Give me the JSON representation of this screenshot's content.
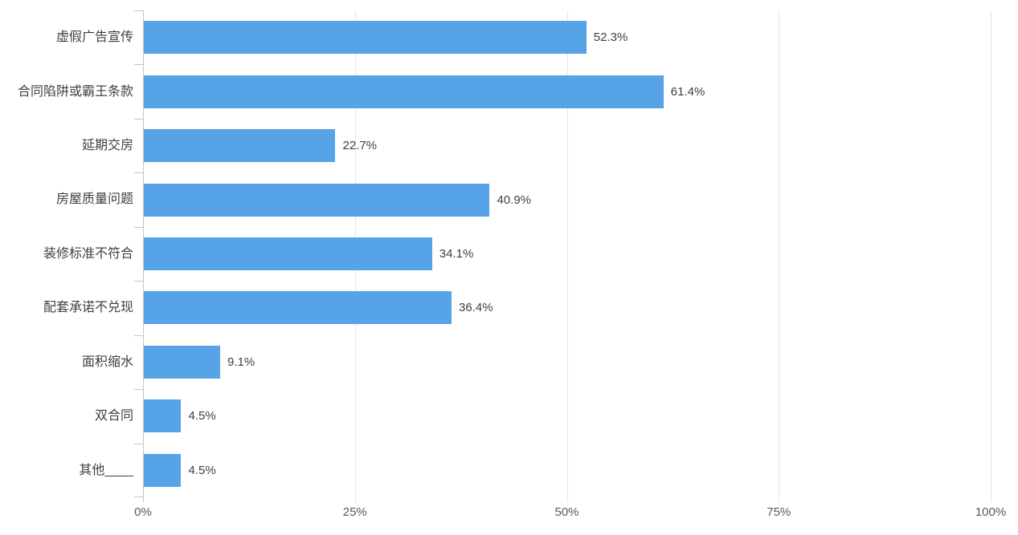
{
  "chart_data": {
    "type": "bar",
    "orientation": "horizontal",
    "title": "",
    "categories": [
      "虚假广告宣传",
      "合同陷阱或霸王条款",
      "延期交房",
      "房屋质量问题",
      "装修标准不符合",
      "配套承诺不兑现",
      "面积缩水",
      "双合同",
      "其他____"
    ],
    "values": [
      52.3,
      61.4,
      22.7,
      40.9,
      34.1,
      36.4,
      9.1,
      4.5,
      4.5
    ],
    "data_labels": [
      "52.3%",
      "61.4%",
      "22.7%",
      "40.9%",
      "34.1%",
      "36.4%",
      "9.1%",
      "4.5%",
      "4.5%"
    ],
    "x_tick_labels": [
      "0%",
      "25%",
      "50%",
      "75%",
      "100%"
    ],
    "x_tick_positions": [
      0,
      25,
      50,
      75,
      100
    ],
    "xlim": [
      0,
      100
    ],
    "grid": true,
    "legend_position": "none",
    "colors": {
      "bar": "#57a3e8",
      "gridline": "#e4e4e4",
      "axis": "#c6c6c6",
      "category_label": "#3f3f3f",
      "value_label": "#3f3f3f",
      "tick_label": "#595959",
      "background": "#ffffff"
    }
  }
}
